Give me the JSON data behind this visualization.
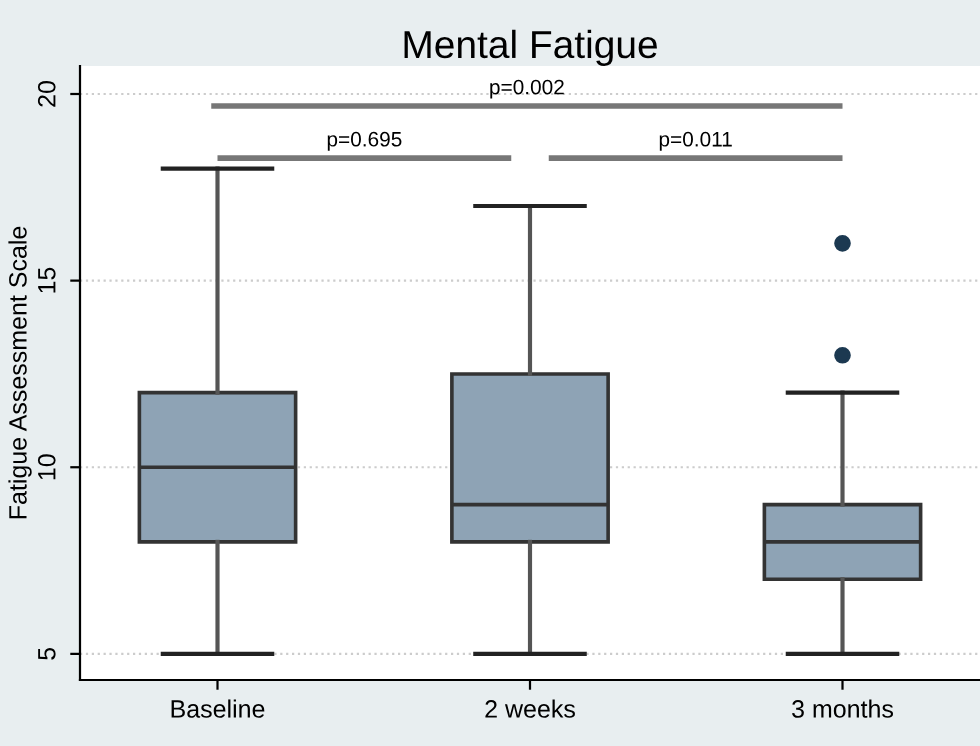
{
  "chart_data": {
    "type": "box",
    "title": "Mental Fatigue",
    "ylabel": "Fatigue Assessment Scale",
    "categories": [
      "Baseline",
      "2 weeks",
      "3 months"
    ],
    "boxes": [
      {
        "low": 5,
        "q1": 8,
        "median": 10,
        "q3": 12,
        "high": 18
      },
      {
        "low": 5,
        "q1": 8,
        "median": 9,
        "q3": 12.5,
        "high": 17
      },
      {
        "low": 5,
        "q1": 7,
        "median": 8,
        "q3": 9,
        "high": 12,
        "outliers": [
          13,
          16
        ]
      }
    ],
    "color": "#8ea3b5",
    "ylim": [
      4.3,
      20.75
    ],
    "yticks": [
      5,
      10,
      15,
      20
    ],
    "grid": "y",
    "annotations": [
      "p=0.002",
      "p=0.695",
      "p=0.011"
    ]
  }
}
